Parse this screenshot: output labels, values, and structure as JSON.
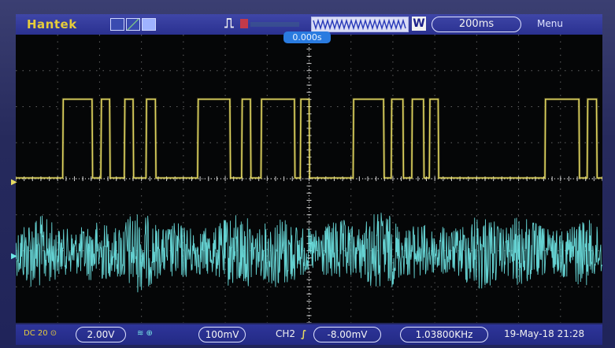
{
  "top_bar": {
    "brand": "Hantek",
    "trigger_state": "⎍",
    "memory_depth_marker": "W",
    "timebase": "200ms",
    "menu": "Menu",
    "trigger_position": "0.000s"
  },
  "bottom_bar": {
    "ch1_icons": "DC 20 ⊙",
    "ch1_volts": "2.00V",
    "ch2_volts": "100mV",
    "trigger_source": "CH2",
    "trigger_edge": "∫",
    "trigger_level": "-8.00mV",
    "frequency": "1.03800KHz",
    "datetime": "19-May-18 21:28"
  },
  "colors": {
    "ch1": "#e8dc62",
    "ch2": "#6fe8e8",
    "grid": "#8a8a8a",
    "background": "#050607"
  },
  "chart_data": {
    "type": "line",
    "title": "",
    "xlabel": "",
    "ylabel": "",
    "grid": true,
    "series": [
      {
        "channel": "CH1",
        "color": "#e8dc62",
        "kind": "digital",
        "low": 0,
        "high": 1,
        "x": [
          0,
          0.08,
          0.081,
          0.13,
          0.131,
          0.145,
          0.146,
          0.16,
          0.161,
          0.185,
          0.186,
          0.2,
          0.201,
          0.222,
          0.223,
          0.238,
          0.239,
          0.31,
          0.311,
          0.365,
          0.366,
          0.385,
          0.386,
          0.4,
          0.401,
          0.418,
          0.419,
          0.475,
          0.476,
          0.485,
          0.486,
          0.5,
          0.501,
          0.575,
          0.576,
          0.627,
          0.628,
          0.64,
          0.641,
          0.66,
          0.661,
          0.675,
          0.676,
          0.695,
          0.696,
          0.705,
          0.706,
          0.72,
          0.721,
          0.902,
          0.903,
          0.96,
          0.961,
          0.974,
          0.975,
          0.99,
          0.991,
          1.0
        ],
        "y": [
          0,
          0,
          1,
          1,
          0,
          0,
          1,
          1,
          0,
          0,
          1,
          1,
          0,
          0,
          1,
          1,
          0,
          0,
          1,
          1,
          0,
          0,
          1,
          1,
          0,
          0,
          1,
          1,
          0,
          0,
          1,
          1,
          0,
          0,
          1,
          1,
          0,
          0,
          1,
          1,
          0,
          0,
          1,
          1,
          0,
          0,
          1,
          1,
          0,
          0,
          1,
          1,
          0,
          0,
          1,
          1,
          0,
          0
        ]
      },
      {
        "channel": "CH2",
        "color": "#6fe8e8",
        "kind": "noise",
        "offset": 0,
        "amplitude": 0.9
      }
    ]
  }
}
